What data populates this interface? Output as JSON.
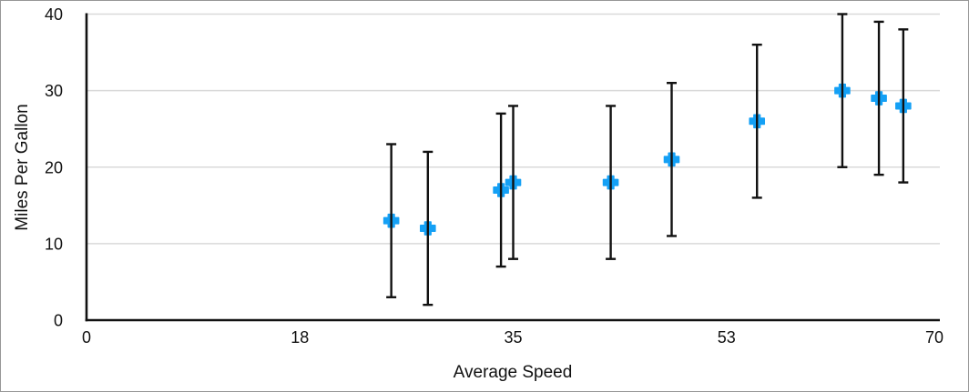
{
  "chart_data": {
    "type": "scatter",
    "title": "",
    "xlabel": "Average Speed",
    "ylabel": "Miles Per Gallon",
    "xlim": [
      0,
      70
    ],
    "ylim": [
      0,
      40
    ],
    "grid": "horizontal-only",
    "legend": "none",
    "x_ticks": [
      {
        "value": 0,
        "label": "0"
      },
      {
        "value": 17.5,
        "label": "18"
      },
      {
        "value": 35,
        "label": "35"
      },
      {
        "value": 52.5,
        "label": "53"
      },
      {
        "value": 70,
        "label": "70"
      }
    ],
    "y_ticks": [
      {
        "value": 0,
        "label": "0"
      },
      {
        "value": 10,
        "label": "10"
      },
      {
        "value": 20,
        "label": "20"
      },
      {
        "value": 30,
        "label": "30"
      },
      {
        "value": 40,
        "label": "40"
      }
    ],
    "gridlines_y": [
      10,
      20,
      30,
      40
    ],
    "series": [
      {
        "name": "Miles Per Gallon",
        "marker": "plus",
        "marker_color": "#14A0F5",
        "error_bars": {
          "axis": "y",
          "plus": 10,
          "minus": 10,
          "cap_width": 11,
          "color": "#111111"
        },
        "points": [
          {
            "x": 25,
            "y": 13
          },
          {
            "x": 28,
            "y": 12
          },
          {
            "x": 34,
            "y": 17
          },
          {
            "x": 35,
            "y": 18
          },
          {
            "x": 43,
            "y": 18
          },
          {
            "x": 48,
            "y": 21
          },
          {
            "x": 55,
            "y": 26
          },
          {
            "x": 62,
            "y": 30
          },
          {
            "x": 65,
            "y": 29
          },
          {
            "x": 67,
            "y": 28
          }
        ]
      }
    ],
    "colors": {
      "axis": "#111111",
      "grid": "#d9d9d9",
      "text": "#111111",
      "frame_border": "#979797",
      "background": "#ffffff"
    }
  }
}
